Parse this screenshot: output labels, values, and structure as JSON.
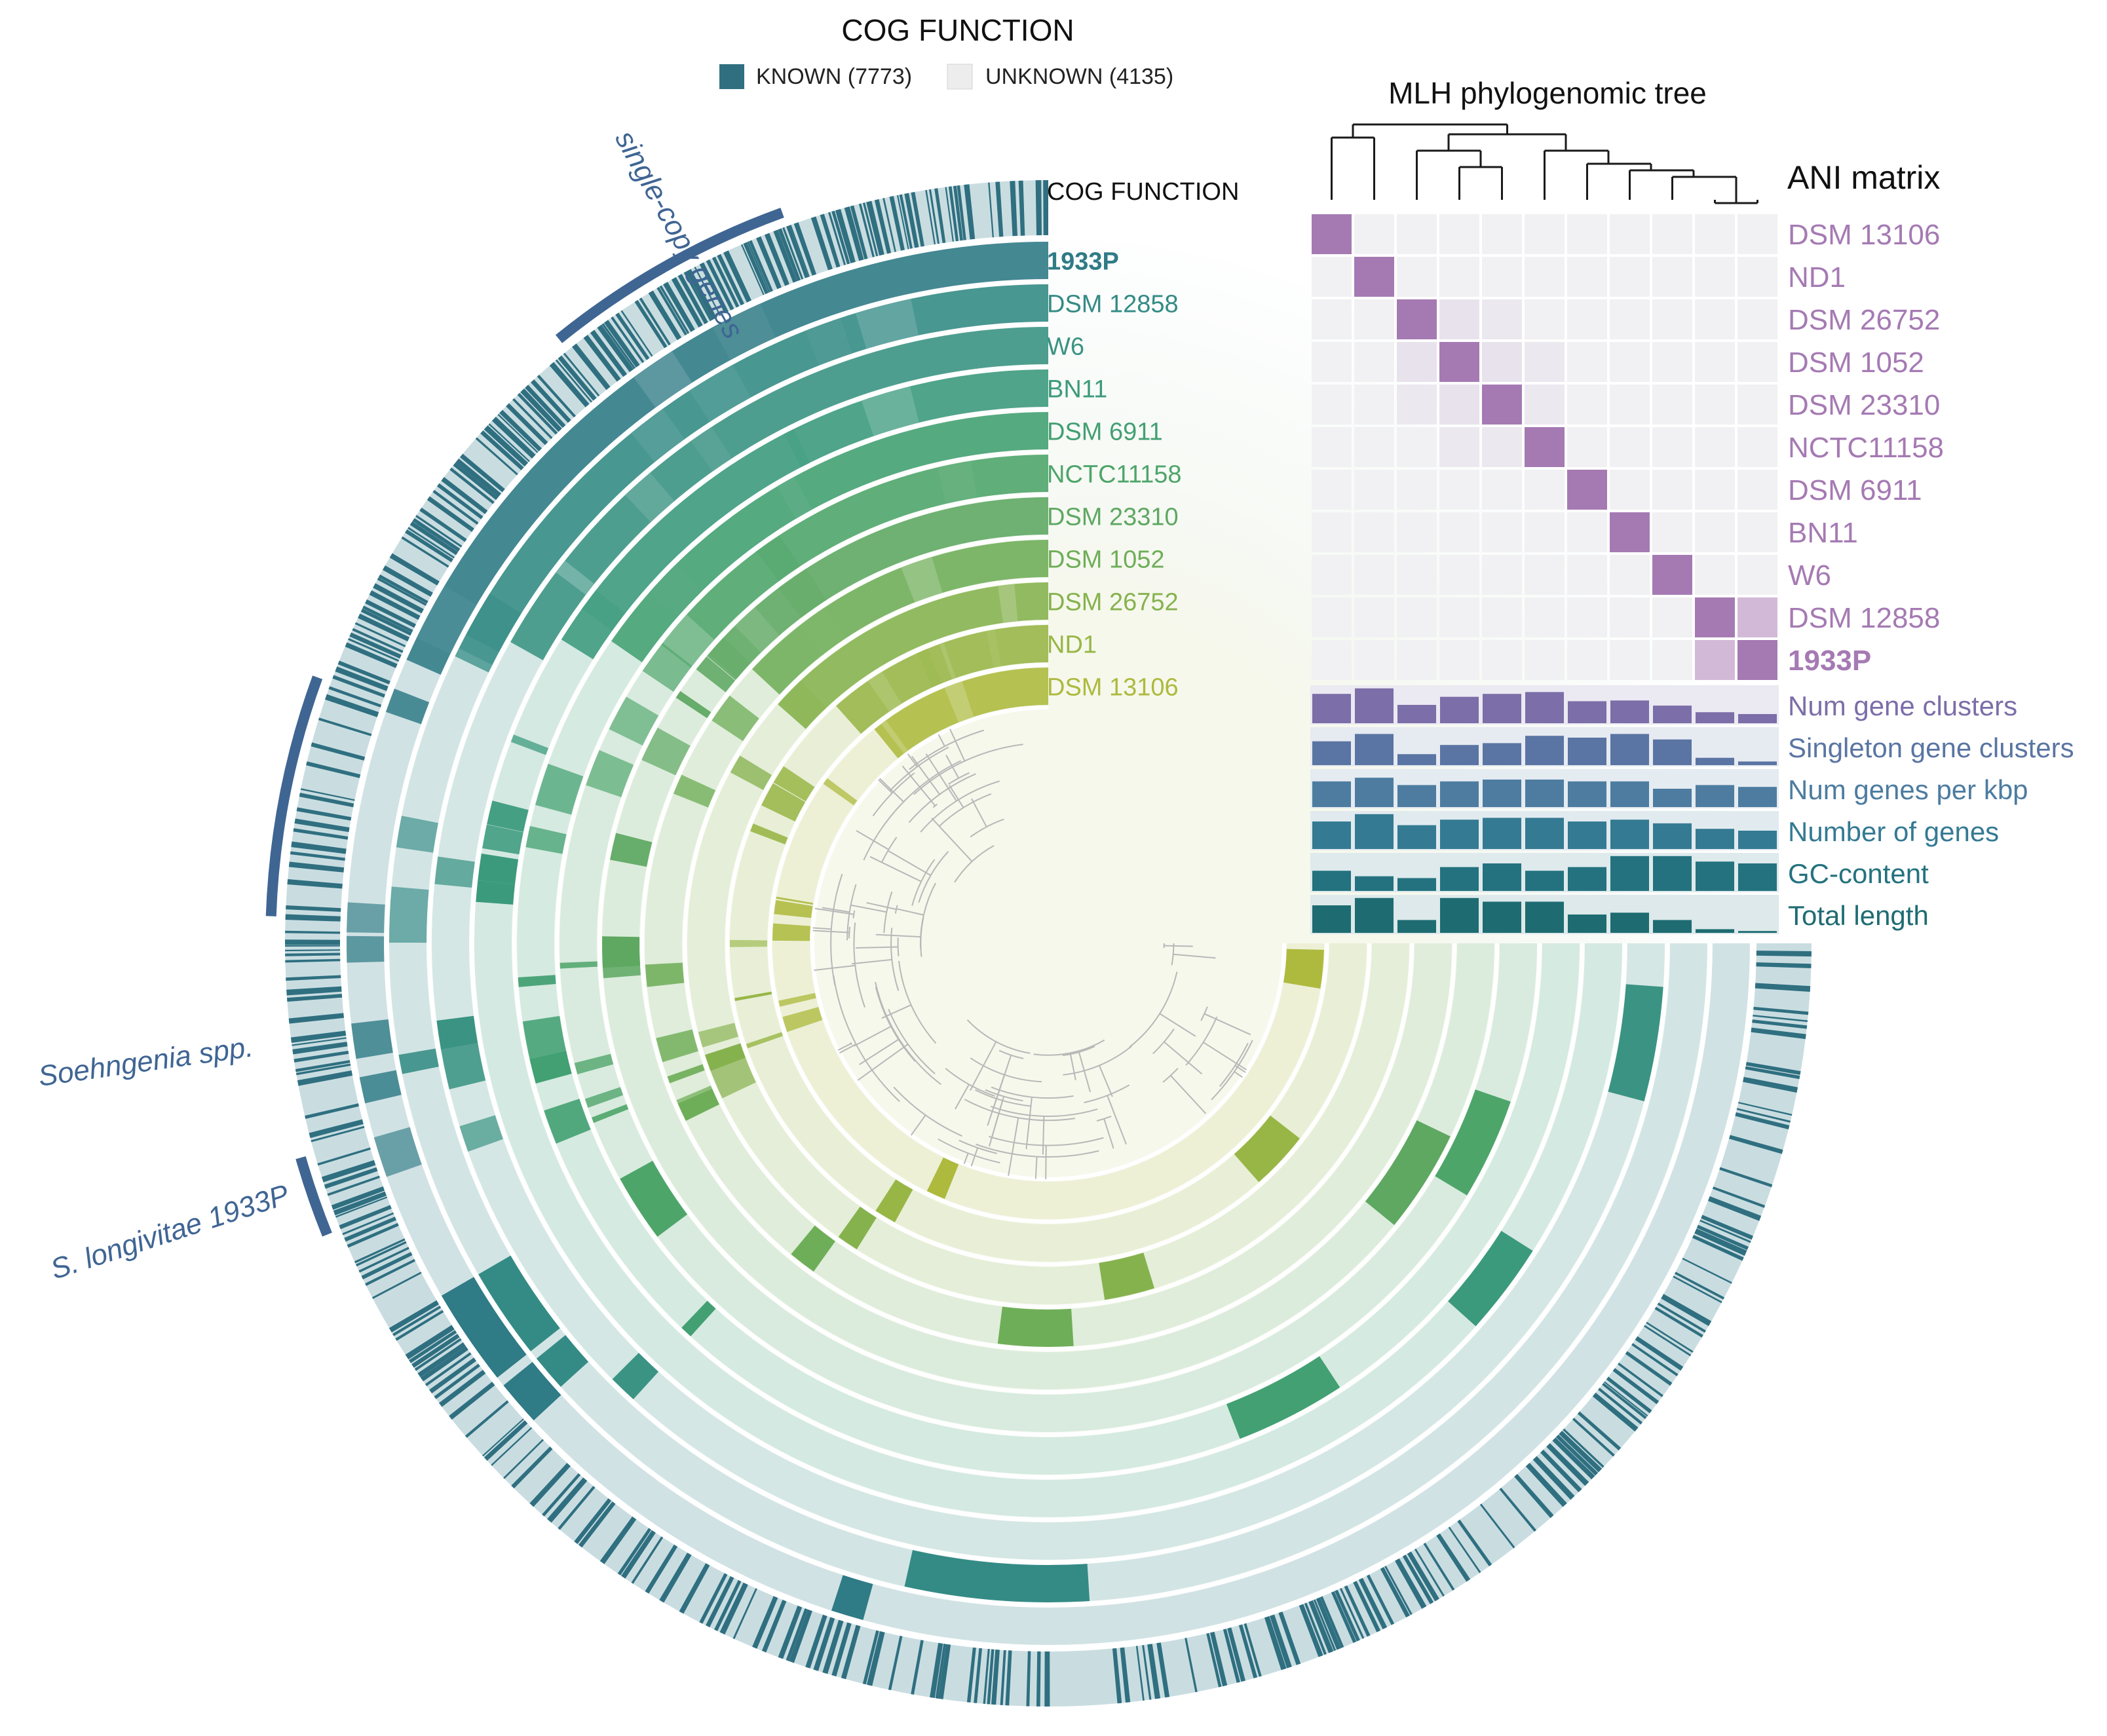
{
  "legend": {
    "title": "COG FUNCTION",
    "known": "KNOWN (7773)",
    "unknown": "UNKNOWN (4135)",
    "known_color": "#2f6f80",
    "unknown_color": "#ededed"
  },
  "tree_title": "MLH phylogenomic tree",
  "ani_title": "ANI matrix",
  "cog_ring_label": "COG FUNCTION",
  "rings": [
    {
      "label": "1933P",
      "color": "#2f7b86",
      "bold": true
    },
    {
      "label": "DSM 12858",
      "color": "#348b85"
    },
    {
      "label": "W6",
      "color": "#3a9383"
    },
    {
      "label": "BN11",
      "color": "#3b9a7c"
    },
    {
      "label": "DSM 6911",
      "color": "#42a072"
    },
    {
      "label": "NCTC11158",
      "color": "#4ea56a"
    },
    {
      "label": "DSM 23310",
      "color": "#5ea862"
    },
    {
      "label": "DSM 1052",
      "color": "#6fae58"
    },
    {
      "label": "DSM 26752",
      "color": "#86b24e"
    },
    {
      "label": "ND1",
      "color": "#98b646"
    },
    {
      "label": "DSM 13106",
      "color": "#adba3e"
    }
  ],
  "ani": {
    "labels": [
      "DSM 13106",
      "ND1",
      "DSM 26752",
      "DSM 1052",
      "DSM 23310",
      "NCTC11158",
      "DSM 6911",
      "BN11",
      "W6",
      "DSM 12858",
      "1933P"
    ],
    "diag_color": "#a57ab3",
    "label_color": "#a57ab3"
  },
  "bars": [
    {
      "label": "Num gene clusters",
      "color": "#7c6ea8",
      "values": [
        0.8,
        0.95,
        0.5,
        0.72,
        0.8,
        0.85,
        0.6,
        0.62,
        0.48,
        0.3,
        0.25
      ]
    },
    {
      "label": "Singleton gene clusters",
      "color": "#5a75a3",
      "values": [
        0.65,
        0.85,
        0.3,
        0.55,
        0.6,
        0.8,
        0.75,
        0.85,
        0.7,
        0.2,
        0.1
      ]
    },
    {
      "label": "Num genes per kbp",
      "color": "#4d7ca0",
      "values": [
        0.7,
        0.8,
        0.6,
        0.7,
        0.75,
        0.75,
        0.7,
        0.7,
        0.5,
        0.6,
        0.55
      ]
    },
    {
      "label": "Number of genes",
      "color": "#357a93",
      "values": [
        0.75,
        0.95,
        0.65,
        0.8,
        0.85,
        0.85,
        0.75,
        0.8,
        0.7,
        0.55,
        0.5
      ]
    },
    {
      "label": "GC-content",
      "color": "#24727f",
      "values": [
        0.55,
        0.4,
        0.35,
        0.65,
        0.75,
        0.55,
        0.65,
        0.95,
        0.95,
        0.8,
        0.75
      ]
    },
    {
      "label": "Total length",
      "color": "#1e6c72",
      "values": [
        0.75,
        0.95,
        0.35,
        0.95,
        0.85,
        0.85,
        0.5,
        0.55,
        0.35,
        0.1,
        0.05
      ]
    }
  ],
  "annotations": {
    "single_copy": "single-copy genes",
    "soehngenia": "Soehngenia spp.",
    "longivitae": "S. longivitae 1933P",
    "color": "#3f6593"
  }
}
